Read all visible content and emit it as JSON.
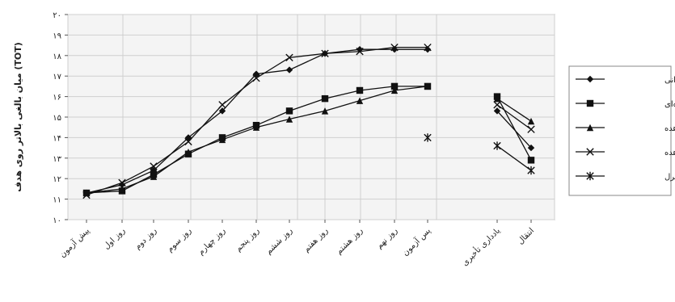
{
  "chart_data": {
    "type": "line",
    "title": "",
    "ylabel": "میان بالغی بالاتر روی هدف (TOT)",
    "ylim": [
      10,
      20
    ],
    "yticks": [
      10,
      11,
      12,
      13,
      14,
      15,
      16,
      17,
      18,
      19,
      20
    ],
    "ytick_labels": [
      "۱۰",
      "۱۱",
      "۱۲",
      "۱۳",
      "۱۴",
      "۱۵",
      "۱۶",
      "۱۷",
      "۱۸",
      "۱۹",
      "۲۰"
    ],
    "categories": [
      "پیش آزمون",
      "روز اول",
      "روز دوم",
      "روز سوم",
      "روز چهارم",
      "روز پنجم",
      "روز ششم",
      "روز هفتم",
      "روز هشتم",
      "روز نهم",
      "پس آزمون",
      "یادداری تأخیری",
      "انتقال"
    ],
    "grid": true,
    "legend_position": "right",
    "series": [
      {
        "name": "دانی",
        "marker": "diamond",
        "training": [
          11.3,
          11.7,
          12.4,
          14.0,
          15.3,
          17.1,
          17.3,
          18.1,
          18.3,
          18.3,
          18.3
        ],
        "tests": [
          15.3,
          13.5
        ]
      },
      {
        "name": "زنجیره‌ای",
        "marker": "square",
        "training": [
          11.3,
          11.4,
          12.2,
          13.2,
          14.0,
          14.6,
          15.3,
          15.9,
          16.3,
          16.5,
          16.5
        ],
        "tests": [
          16.0,
          12.9
        ]
      },
      {
        "name": "مشاهده",
        "marker": "triangle",
        "training": [
          11.3,
          11.5,
          12.1,
          13.3,
          13.9,
          14.5,
          14.9,
          15.3,
          15.8,
          16.3,
          16.5
        ],
        "tests": [
          15.9,
          14.8
        ]
      },
      {
        "name": "الگوی مشاهده",
        "marker": "x",
        "training": [
          11.2,
          11.8,
          12.6,
          13.8,
          15.6,
          16.9,
          17.9,
          18.1,
          18.2,
          18.4,
          18.4
        ],
        "tests": [
          15.6,
          14.4
        ]
      },
      {
        "name": "کنترل",
        "marker": "star",
        "training": [
          null,
          null,
          null,
          null,
          null,
          null,
          null,
          null,
          null,
          null,
          14.0
        ],
        "tests": [
          13.6,
          12.4
        ]
      }
    ]
  }
}
